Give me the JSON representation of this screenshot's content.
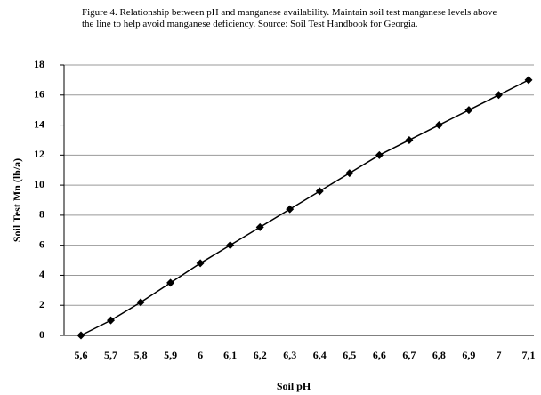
{
  "chart_data": {
    "type": "line",
    "caption": "Figure 4. Relationship between pH and manganese availability. Maintain soil test manganese levels above the line to help avoid manganese deficiency. Source: Soil Test Handbook for Georgia.",
    "xlabel": "Soil pH",
    "ylabel": "Soil Test Mn (lb/a)",
    "categories": [
      "5,6",
      "5,7",
      "5,8",
      "5,9",
      "6",
      "6,1",
      "6,2",
      "6,3",
      "6,4",
      "6,5",
      "6,6",
      "6,7",
      "6,8",
      "6,9",
      "7",
      "7,1"
    ],
    "series": [
      {
        "color": "#000000",
        "values": [
          0,
          1,
          2.2,
          3.5,
          4.8,
          6,
          7.2,
          8.4,
          9.6,
          10.8,
          12,
          13,
          14,
          15,
          16,
          17
        ]
      }
    ],
    "ylim": [
      0,
      18
    ],
    "yticks": [
      0,
      2,
      4,
      6,
      8,
      10,
      12,
      14,
      16,
      18
    ],
    "grid": true
  }
}
